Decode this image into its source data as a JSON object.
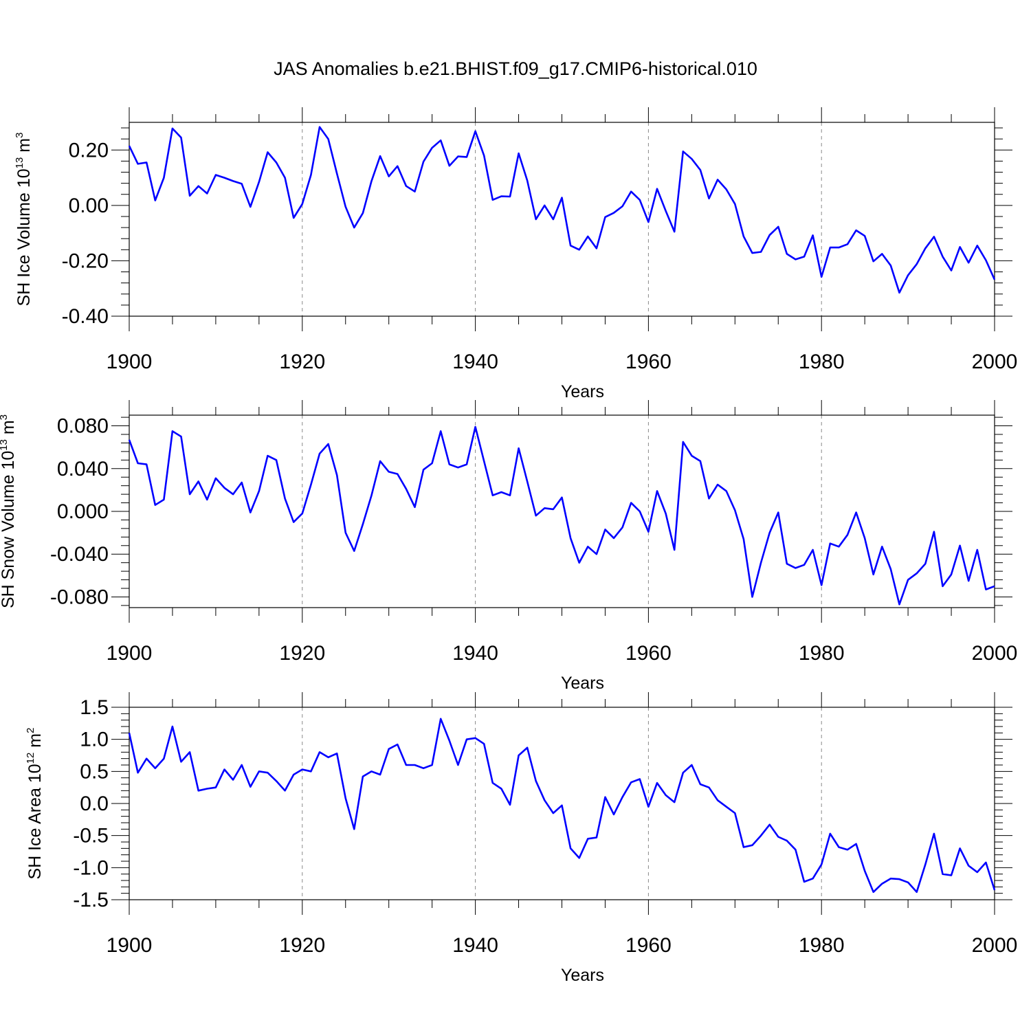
{
  "title": "JAS Anomalies b.e21.BHIST.f09_g17.CMIP6-historical.010",
  "line_color": "#0000ff",
  "chart_data": [
    {
      "type": "line",
      "xlabel": "Years",
      "ylabel_main": "SH Ice Volume 10",
      "ylabel_exp": "13",
      "ylabel_unit": " m",
      "ylabel_unit_exp": "3",
      "xlim": [
        1900,
        2000
      ],
      "ylim": [
        -0.4,
        0.3
      ],
      "xticks": [
        1900,
        1920,
        1940,
        1960,
        1980,
        2000
      ],
      "yticks": [
        -0.4,
        -0.2,
        0.0,
        0.2
      ],
      "ytick_labels": [
        "-0.40",
        "-0.20",
        "0.00",
        "0.20"
      ],
      "x_grid": "dashed at 1920, 1940, 1960, 1980",
      "series": [
        {
          "x_start": 1900,
          "values": [
            0.215,
            0.15,
            0.155,
            0.018,
            0.1,
            0.278,
            0.245,
            0.035,
            0.07,
            0.043,
            0.11,
            0.1,
            0.088,
            0.078,
            -0.005,
            0.085,
            0.192,
            0.155,
            0.1,
            -0.045,
            0.005,
            0.11,
            0.283,
            0.24,
            0.115,
            -0.005,
            -0.08,
            -0.028,
            0.088,
            0.178,
            0.105,
            0.142,
            0.07,
            0.05,
            0.158,
            0.208,
            0.235,
            0.143,
            0.177,
            0.175,
            0.268,
            0.18,
            0.02,
            0.033,
            0.032,
            0.188,
            0.09,
            -0.05,
            0.0,
            -0.05,
            0.028,
            -0.145,
            -0.16,
            -0.112,
            -0.155,
            -0.042,
            -0.027,
            -0.003,
            0.05,
            0.02,
            -0.06,
            0.06,
            -0.02,
            -0.095,
            0.195,
            0.168,
            0.128,
            0.025,
            0.093,
            0.058,
            0.005,
            -0.112,
            -0.172,
            -0.168,
            -0.107,
            -0.077,
            -0.175,
            -0.195,
            -0.185,
            -0.108,
            -0.258,
            -0.152,
            -0.152,
            -0.14,
            -0.09,
            -0.11,
            -0.202,
            -0.175,
            -0.217,
            -0.315,
            -0.252,
            -0.212,
            -0.155,
            -0.113,
            -0.185,
            -0.235,
            -0.15,
            -0.207,
            -0.145,
            -0.198,
            -0.268
          ]
        }
      ]
    },
    {
      "type": "line",
      "xlabel": "Years",
      "ylabel_main": "SH Snow Volume 10",
      "ylabel_exp": "13",
      "ylabel_unit": " m",
      "ylabel_unit_exp": "3",
      "xlim": [
        1900,
        2000
      ],
      "ylim": [
        -0.09,
        0.09
      ],
      "xticks": [
        1900,
        1920,
        1940,
        1960,
        1980,
        2000
      ],
      "yticks": [
        -0.08,
        -0.04,
        0.0,
        0.04,
        0.08
      ],
      "ytick_labels": [
        "-0.080",
        "-0.040",
        "0.000",
        "0.040",
        "0.080"
      ],
      "x_grid": "dashed at 1920, 1940, 1960, 1980",
      "series": [
        {
          "x_start": 1900,
          "values": [
            0.067,
            0.045,
            0.044,
            0.006,
            0.011,
            0.075,
            0.07,
            0.016,
            0.028,
            0.011,
            0.031,
            0.022,
            0.016,
            0.027,
            -0.001,
            0.019,
            0.052,
            0.048,
            0.012,
            -0.01,
            -0.002,
            0.025,
            0.054,
            0.063,
            0.034,
            -0.02,
            -0.037,
            -0.012,
            0.015,
            0.047,
            0.037,
            0.035,
            0.021,
            0.004,
            0.039,
            0.045,
            0.075,
            0.044,
            0.041,
            0.044,
            0.079,
            0.047,
            0.015,
            0.018,
            0.015,
            0.059,
            0.028,
            -0.004,
            0.003,
            0.002,
            0.013,
            -0.025,
            -0.048,
            -0.033,
            -0.04,
            -0.017,
            -0.025,
            -0.015,
            0.008,
            0.0,
            -0.019,
            0.019,
            -0.002,
            -0.036,
            0.065,
            0.052,
            0.047,
            0.012,
            0.025,
            0.019,
            0.001,
            -0.026,
            -0.08,
            -0.048,
            -0.02,
            -0.001,
            -0.049,
            -0.053,
            -0.05,
            -0.036,
            -0.069,
            -0.03,
            -0.033,
            -0.022,
            -0.001,
            -0.025,
            -0.059,
            -0.033,
            -0.054,
            -0.087,
            -0.064,
            -0.058,
            -0.049,
            -0.019,
            -0.07,
            -0.059,
            -0.032,
            -0.065,
            -0.036,
            -0.073,
            -0.07
          ]
        }
      ]
    },
    {
      "type": "line",
      "xlabel": "Years",
      "ylabel_main": "SH Ice Area 10",
      "ylabel_exp": "12",
      "ylabel_unit": " m",
      "ylabel_unit_exp": "2",
      "xlim": [
        1900,
        2000
      ],
      "ylim": [
        -1.5,
        1.5
      ],
      "xticks": [
        1900,
        1920,
        1940,
        1960,
        1980,
        2000
      ],
      "yticks": [
        -1.5,
        -1.0,
        -0.5,
        0.0,
        0.5,
        1.0,
        1.5
      ],
      "ytick_labels": [
        "-1.5",
        "-1.0",
        "-0.5",
        "0.0",
        "0.5",
        "1.0",
        "1.5"
      ],
      "x_grid": "dashed at 1920, 1940, 1960, 1980",
      "series": [
        {
          "x_start": 1900,
          "values": [
            1.1,
            0.48,
            0.7,
            0.55,
            0.7,
            1.2,
            0.65,
            0.8,
            0.2,
            0.23,
            0.25,
            0.53,
            0.37,
            0.6,
            0.26,
            0.5,
            0.48,
            0.35,
            0.2,
            0.45,
            0.53,
            0.5,
            0.8,
            0.72,
            0.78,
            0.08,
            -0.4,
            0.42,
            0.5,
            0.45,
            0.85,
            0.92,
            0.6,
            0.6,
            0.55,
            0.6,
            1.32,
            0.98,
            0.6,
            1.0,
            1.02,
            0.93,
            0.32,
            0.23,
            -0.02,
            0.75,
            0.87,
            0.35,
            0.05,
            -0.15,
            -0.03,
            -0.7,
            -0.85,
            -0.55,
            -0.53,
            0.1,
            -0.17,
            0.1,
            0.33,
            0.38,
            -0.05,
            0.32,
            0.13,
            0.02,
            0.48,
            0.6,
            0.3,
            0.25,
            0.05,
            -0.05,
            -0.15,
            -0.68,
            -0.65,
            -0.5,
            -0.33,
            -0.52,
            -0.58,
            -0.72,
            -1.22,
            -1.17,
            -0.95,
            -0.47,
            -0.68,
            -0.72,
            -0.63,
            -1.05,
            -1.38,
            -1.25,
            -1.17,
            -1.18,
            -1.23,
            -1.38,
            -0.95,
            -0.47,
            -1.1,
            -1.12,
            -0.7,
            -0.97,
            -1.07,
            -0.92,
            -1.35
          ]
        }
      ]
    }
  ]
}
